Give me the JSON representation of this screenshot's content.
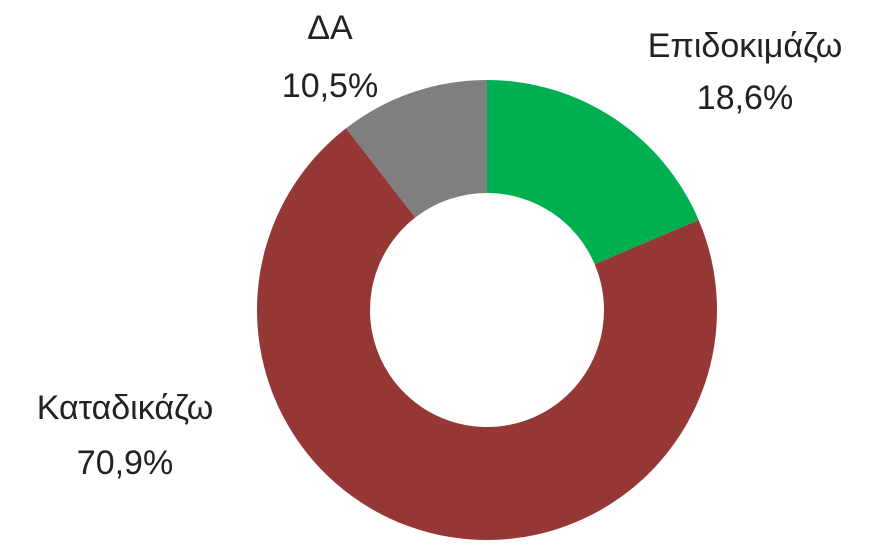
{
  "chart_data": {
    "type": "donut",
    "categories": [
      "Επιδοκιμάζω",
      "Καταδικάζω",
      "ΔΑ"
    ],
    "values": [
      18.6,
      70.9,
      10.5
    ],
    "value_labels": [
      "18,6%",
      "70,9%",
      "10,5%"
    ],
    "colors": [
      "#00b050",
      "#953735",
      "#7f7f7f"
    ]
  }
}
